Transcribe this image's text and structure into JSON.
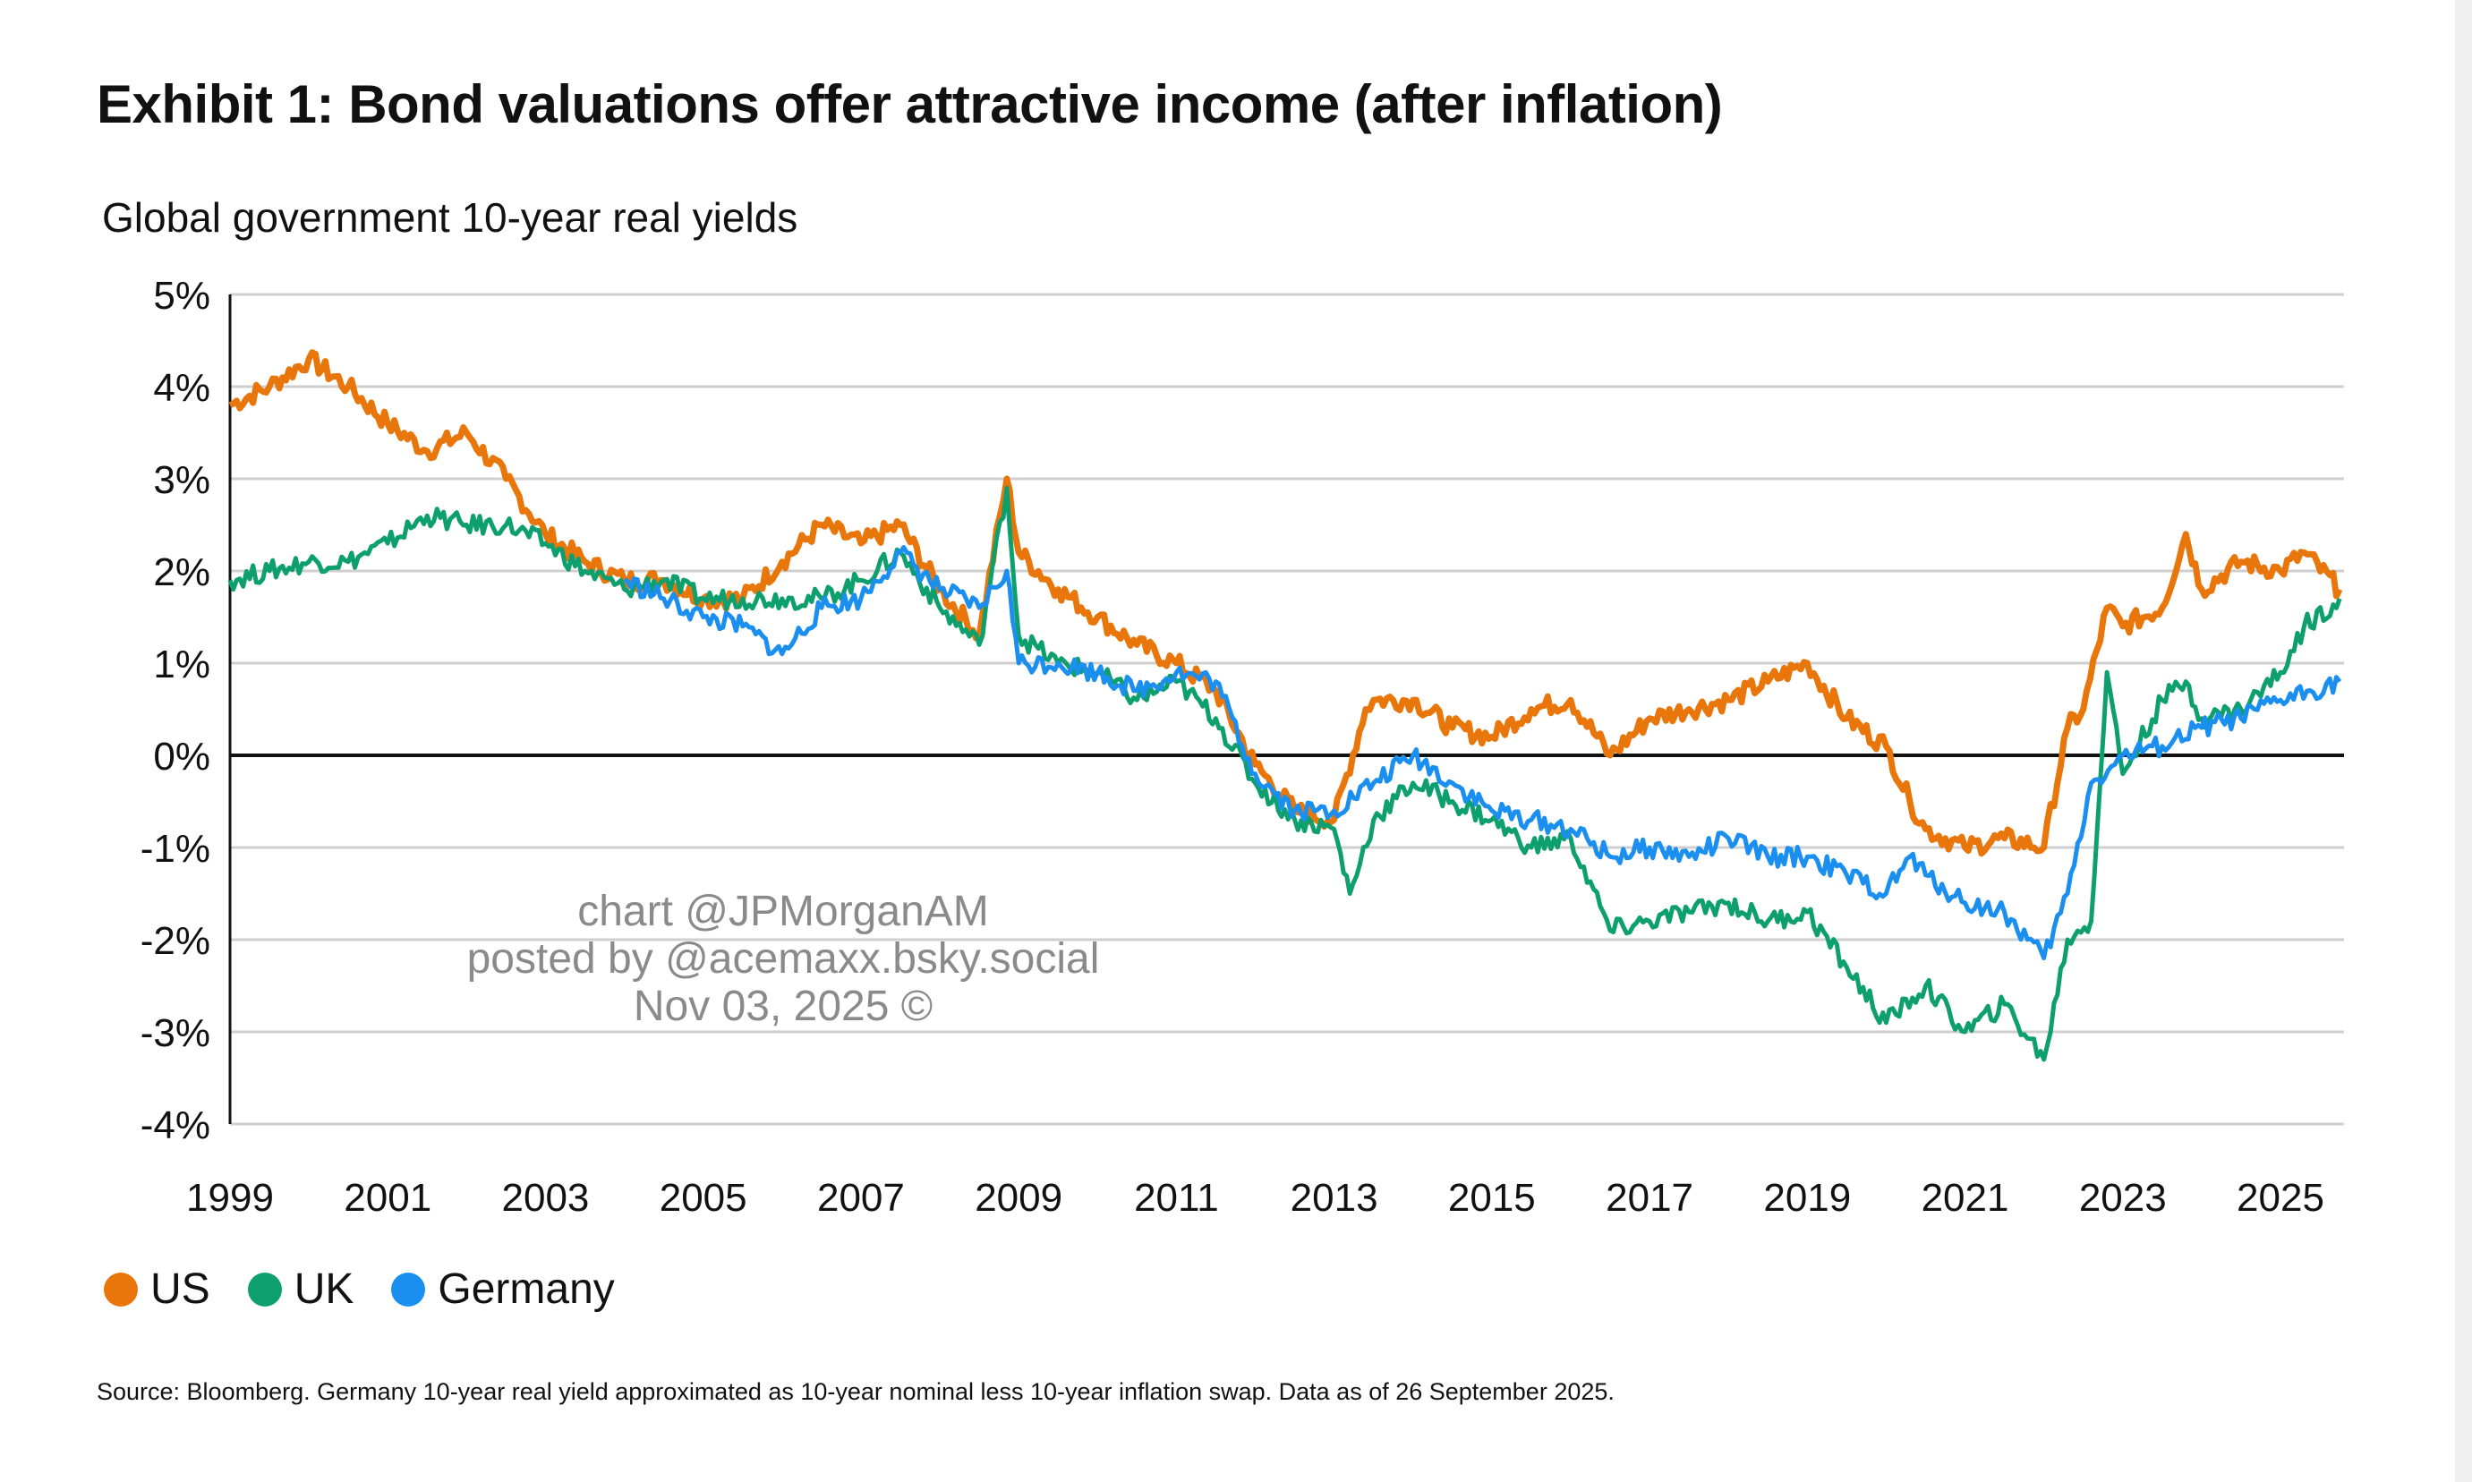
{
  "title": "Exhibit 1: Bond valuations offer attractive income (after inflation)",
  "source": "Source: Bloomberg. Germany 10-year real yield approximated as 10-year nominal less 10-year inflation swap. Data as of 26 September 2025.",
  "watermark": [
    "chart @JPMorganAM",
    "posted by @acemaxx.bsky.social",
    "Nov 03, 2025 ©"
  ],
  "chart_data": {
    "type": "line",
    "title": "Global government 10-year real yields",
    "xlabel": "",
    "ylabel": "",
    "xlim": [
      1999,
      2025.75
    ],
    "ylim": [
      -4,
      5
    ],
    "grid": true,
    "legend_position": "bottom-left",
    "x_ticks": [
      1999,
      2001,
      2003,
      2005,
      2007,
      2009,
      2011,
      2013,
      2015,
      2017,
      2019,
      2021,
      2023,
      2025
    ],
    "x_tick_labels": [
      "1999",
      "2001",
      "2003",
      "2005",
      "2007",
      "2009",
      "2011",
      "2013",
      "2015",
      "2017",
      "2019",
      "2021",
      "2023",
      "2025"
    ],
    "y_ticks": [
      5,
      4,
      3,
      2,
      1,
      0,
      -1,
      -2,
      -3,
      -4
    ],
    "y_tick_labels": [
      "5%",
      "4%",
      "3%",
      "2%",
      "1%",
      "0%",
      "-1%",
      "-2%",
      "-3%",
      "-4%"
    ],
    "series": [
      {
        "name": "US",
        "color": "#E8760A",
        "points": [
          [
            1999.0,
            3.8
          ],
          [
            1999.5,
            4.0
          ],
          [
            2000.0,
            4.3
          ],
          [
            2000.5,
            4.0
          ],
          [
            2001.0,
            3.6
          ],
          [
            2001.5,
            3.3
          ],
          [
            2002.0,
            3.5
          ],
          [
            2002.5,
            3.0
          ],
          [
            2003.0,
            2.4
          ],
          [
            2003.5,
            2.1
          ],
          [
            2004.0,
            1.9
          ],
          [
            2004.5,
            1.9
          ],
          [
            2005.0,
            1.7
          ],
          [
            2005.5,
            1.7
          ],
          [
            2006.0,
            2.1
          ],
          [
            2006.5,
            2.5
          ],
          [
            2007.0,
            2.3
          ],
          [
            2007.5,
            2.5
          ],
          [
            2008.0,
            1.8
          ],
          [
            2008.5,
            1.3
          ],
          [
            2008.85,
            3.0
          ],
          [
            2009.0,
            2.2
          ],
          [
            2009.5,
            1.8
          ],
          [
            2010.0,
            1.5
          ],
          [
            2010.5,
            1.2
          ],
          [
            2011.0,
            1.0
          ],
          [
            2011.5,
            0.7
          ],
          [
            2012.0,
            -0.1
          ],
          [
            2012.5,
            -0.6
          ],
          [
            2013.0,
            -0.7
          ],
          [
            2013.4,
            0.5
          ],
          [
            2013.5,
            0.6
          ],
          [
            2014.0,
            0.6
          ],
          [
            2014.5,
            0.3
          ],
          [
            2015.0,
            0.2
          ],
          [
            2015.5,
            0.5
          ],
          [
            2016.0,
            0.6
          ],
          [
            2016.5,
            0.0
          ],
          [
            2017.0,
            0.4
          ],
          [
            2017.5,
            0.5
          ],
          [
            2018.0,
            0.6
          ],
          [
            2018.5,
            0.8
          ],
          [
            2019.0,
            1.0
          ],
          [
            2019.5,
            0.4
          ],
          [
            2020.0,
            0.1
          ],
          [
            2020.3,
            -0.5
          ],
          [
            2020.5,
            -0.8
          ],
          [
            2021.0,
            -1.0
          ],
          [
            2021.5,
            -0.9
          ],
          [
            2022.0,
            -1.0
          ],
          [
            2022.3,
            0.3
          ],
          [
            2022.5,
            0.5
          ],
          [
            2022.8,
            1.6
          ],
          [
            2023.0,
            1.4
          ],
          [
            2023.5,
            1.6
          ],
          [
            2023.8,
            2.4
          ],
          [
            2024.0,
            1.8
          ],
          [
            2024.5,
            2.1
          ],
          [
            2025.0,
            2.0
          ],
          [
            2025.3,
            2.2
          ],
          [
            2025.75,
            1.8
          ]
        ]
      },
      {
        "name": "UK",
        "color": "#0E9F6E",
        "points": [
          [
            1999.0,
            1.9
          ],
          [
            1999.5,
            2.0
          ],
          [
            2000.0,
            2.1
          ],
          [
            2000.5,
            2.1
          ],
          [
            2001.0,
            2.3
          ],
          [
            2001.5,
            2.6
          ],
          [
            2002.0,
            2.5
          ],
          [
            2002.5,
            2.5
          ],
          [
            2003.0,
            2.3
          ],
          [
            2003.5,
            2.0
          ],
          [
            2004.0,
            1.8
          ],
          [
            2004.5,
            1.9
          ],
          [
            2005.0,
            1.7
          ],
          [
            2005.5,
            1.7
          ],
          [
            2006.0,
            1.7
          ],
          [
            2006.5,
            1.7
          ],
          [
            2007.0,
            1.9
          ],
          [
            2007.5,
            2.2
          ],
          [
            2008.0,
            1.6
          ],
          [
            2008.5,
            1.2
          ],
          [
            2008.85,
            2.9
          ],
          [
            2009.0,
            1.3
          ],
          [
            2009.5,
            1.0
          ],
          [
            2010.0,
            0.9
          ],
          [
            2010.5,
            0.6
          ],
          [
            2011.0,
            0.8
          ],
          [
            2011.5,
            0.4
          ],
          [
            2012.0,
            -0.3
          ],
          [
            2012.5,
            -0.7
          ],
          [
            2013.0,
            -0.8
          ],
          [
            2013.2,
            -1.5
          ],
          [
            2013.5,
            -0.7
          ],
          [
            2014.0,
            -0.3
          ],
          [
            2014.5,
            -0.5
          ],
          [
            2015.0,
            -0.7
          ],
          [
            2015.5,
            -1.0
          ],
          [
            2016.0,
            -0.9
          ],
          [
            2016.5,
            -1.9
          ],
          [
            2017.0,
            -1.8
          ],
          [
            2017.5,
            -1.7
          ],
          [
            2018.0,
            -1.6
          ],
          [
            2018.5,
            -1.8
          ],
          [
            2019.0,
            -1.7
          ],
          [
            2019.5,
            -2.3
          ],
          [
            2020.0,
            -2.9
          ],
          [
            2020.5,
            -2.5
          ],
          [
            2021.0,
            -3.0
          ],
          [
            2021.5,
            -2.7
          ],
          [
            2022.0,
            -3.3
          ],
          [
            2022.3,
            -2.0
          ],
          [
            2022.6,
            -1.8
          ],
          [
            2022.8,
            0.9
          ],
          [
            2023.0,
            -0.2
          ],
          [
            2023.5,
            0.6
          ],
          [
            2023.8,
            0.8
          ],
          [
            2024.0,
            0.4
          ],
          [
            2024.5,
            0.5
          ],
          [
            2025.0,
            0.9
          ],
          [
            2025.3,
            1.4
          ],
          [
            2025.75,
            1.7
          ]
        ]
      },
      {
        "name": "Germany",
        "color": "#1A8FF0",
        "points": [
          [
            2004.0,
            1.9
          ],
          [
            2004.5,
            1.7
          ],
          [
            2005.0,
            1.5
          ],
          [
            2005.5,
            1.4
          ],
          [
            2006.0,
            1.1
          ],
          [
            2006.5,
            1.6
          ],
          [
            2007.0,
            1.7
          ],
          [
            2007.5,
            2.2
          ],
          [
            2008.0,
            1.8
          ],
          [
            2008.5,
            1.6
          ],
          [
            2008.85,
            2.0
          ],
          [
            2009.0,
            1.0
          ],
          [
            2009.5,
            1.0
          ],
          [
            2010.0,
            0.9
          ],
          [
            2010.5,
            0.7
          ],
          [
            2011.0,
            0.9
          ],
          [
            2011.5,
            0.8
          ],
          [
            2012.0,
            -0.2
          ],
          [
            2012.5,
            -0.6
          ],
          [
            2013.0,
            -0.6
          ],
          [
            2013.5,
            -0.3
          ],
          [
            2014.0,
            0.0
          ],
          [
            2014.5,
            -0.3
          ],
          [
            2015.0,
            -0.6
          ],
          [
            2015.5,
            -0.7
          ],
          [
            2016.0,
            -0.8
          ],
          [
            2016.5,
            -1.1
          ],
          [
            2017.0,
            -1.0
          ],
          [
            2017.5,
            -1.1
          ],
          [
            2018.0,
            -0.9
          ],
          [
            2018.5,
            -1.1
          ],
          [
            2019.0,
            -1.1
          ],
          [
            2019.5,
            -1.3
          ],
          [
            2020.0,
            -1.5
          ],
          [
            2020.3,
            -1.1
          ],
          [
            2020.5,
            -1.3
          ],
          [
            2021.0,
            -1.6
          ],
          [
            2021.5,
            -1.7
          ],
          [
            2022.0,
            -2.2
          ],
          [
            2022.3,
            -1.5
          ],
          [
            2022.6,
            -0.3
          ],
          [
            2022.9,
            -0.1
          ],
          [
            2023.0,
            0.0
          ],
          [
            2023.5,
            0.1
          ],
          [
            2024.0,
            0.3
          ],
          [
            2024.5,
            0.4
          ],
          [
            2025.0,
            0.6
          ],
          [
            2025.75,
            0.8
          ]
        ]
      }
    ]
  }
}
